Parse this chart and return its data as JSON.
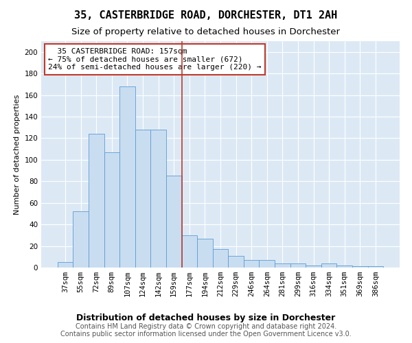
{
  "title": "35, CASTERBRIDGE ROAD, DORCHESTER, DT1 2AH",
  "subtitle": "Size of property relative to detached houses in Dorchester",
  "xlabel": "Distribution of detached houses by size in Dorchester",
  "ylabel": "Number of detached properties",
  "categories": [
    "37sqm",
    "55sqm",
    "72sqm",
    "89sqm",
    "107sqm",
    "124sqm",
    "142sqm",
    "159sqm",
    "177sqm",
    "194sqm",
    "212sqm",
    "229sqm",
    "246sqm",
    "264sqm",
    "281sqm",
    "299sqm",
    "316sqm",
    "334sqm",
    "351sqm",
    "369sqm",
    "386sqm"
  ],
  "values": [
    5,
    52,
    124,
    107,
    168,
    128,
    128,
    85,
    30,
    27,
    17,
    11,
    7,
    7,
    4,
    4,
    2,
    4,
    2,
    1,
    1
  ],
  "bar_color": "#c9ddf0",
  "bar_edgecolor": "#5b9bd5",
  "vline_color": "#c0392b",
  "vline_x": 7.5,
  "annotation_text": "  35 CASTERBRIDGE ROAD: 157sqm  \n← 75% of detached houses are smaller (672)\n24% of semi-detached houses are larger (220) →",
  "annotation_box_color": "#ffffff",
  "annotation_box_edgecolor": "#c0392b",
  "ylim": [
    0,
    210
  ],
  "yticks": [
    0,
    20,
    40,
    60,
    80,
    100,
    120,
    140,
    160,
    180,
    200
  ],
  "footer1": "Contains HM Land Registry data © Crown copyright and database right 2024.",
  "footer2": "Contains public sector information licensed under the Open Government Licence v3.0.",
  "background_color": "#dce9f5",
  "plot_bg_color": "#dce9f5",
  "title_fontsize": 11,
  "subtitle_fontsize": 9.5,
  "xlabel_fontsize": 9,
  "ylabel_fontsize": 8,
  "tick_fontsize": 7.5,
  "annotation_fontsize": 8,
  "footer_fontsize": 7
}
